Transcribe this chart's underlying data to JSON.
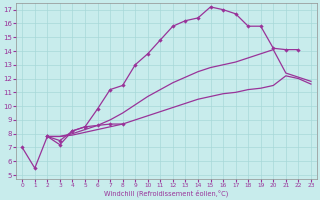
{
  "xlabel": "Windchill (Refroidissement éolien,°C)",
  "bg_color": "#c8ecec",
  "line_color": "#993399",
  "grid_color": "#a8d8d8",
  "xlim": [
    -0.5,
    23.5
  ],
  "ylim": [
    4.7,
    17.5
  ],
  "yticks": [
    5,
    6,
    7,
    8,
    9,
    10,
    11,
    12,
    13,
    14,
    15,
    16,
    17
  ],
  "xticks": [
    0,
    1,
    2,
    3,
    4,
    5,
    6,
    7,
    8,
    9,
    10,
    11,
    12,
    13,
    14,
    15,
    16,
    17,
    18,
    19,
    20,
    21,
    22,
    23
  ],
  "lines": [
    {
      "x": [
        0,
        1,
        2,
        3,
        4,
        5,
        6,
        7,
        8
      ],
      "y": [
        7.0,
        5.5,
        7.8,
        7.5,
        8.2,
        8.5,
        8.6,
        8.7,
        8.7
      ],
      "has_markers": true
    },
    {
      "x": [
        2,
        3,
        4,
        5,
        6,
        7,
        8,
        9,
        10,
        11,
        12,
        13,
        14,
        15,
        16,
        17,
        18,
        19,
        20,
        21,
        22
      ],
      "y": [
        7.8,
        7.2,
        8.2,
        8.5,
        9.8,
        11.2,
        11.5,
        13.0,
        13.8,
        14.8,
        15.8,
        16.2,
        16.4,
        17.2,
        17.0,
        16.7,
        15.8,
        15.8,
        14.2,
        14.1,
        14.1
      ],
      "has_markers": true
    },
    {
      "x": [
        2,
        3,
        4,
        5,
        6,
        7,
        8,
        9,
        10,
        11,
        12,
        13,
        14,
        15,
        16,
        17,
        18,
        19,
        20,
        21,
        22,
        23
      ],
      "y": [
        7.8,
        7.8,
        8.0,
        8.3,
        8.6,
        9.0,
        9.5,
        10.1,
        10.7,
        11.2,
        11.7,
        12.1,
        12.5,
        12.8,
        13.0,
        13.2,
        13.5,
        13.8,
        14.1,
        12.4,
        12.1,
        11.8
      ],
      "has_markers": false
    },
    {
      "x": [
        2,
        3,
        4,
        5,
        6,
        7,
        8,
        9,
        10,
        11,
        12,
        13,
        14,
        15,
        16,
        17,
        18,
        19,
        20,
        21,
        22,
        23
      ],
      "y": [
        7.8,
        7.8,
        7.9,
        8.1,
        8.3,
        8.5,
        8.7,
        9.0,
        9.3,
        9.6,
        9.9,
        10.2,
        10.5,
        10.7,
        10.9,
        11.0,
        11.2,
        11.3,
        11.5,
        12.2,
        12.0,
        11.6
      ],
      "has_markers": false
    }
  ]
}
